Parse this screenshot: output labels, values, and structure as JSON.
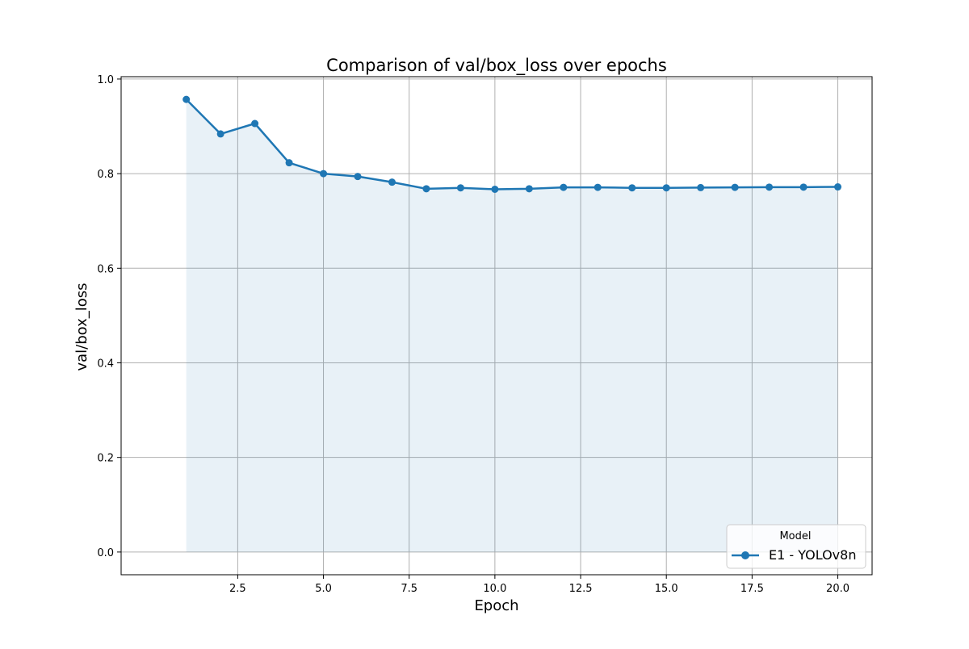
{
  "chart_data": {
    "type": "line",
    "title": "Comparison of val/box_loss over epochs",
    "xlabel": "Epoch",
    "ylabel": "val/box_loss",
    "xlim": [
      -0.9,
      21.0
    ],
    "ylim": [
      -0.048,
      1.005
    ],
    "xticks": [
      2.5,
      5.0,
      7.5,
      10.0,
      12.5,
      15.0,
      17.5,
      20.0
    ],
    "xtick_labels": [
      "2.5",
      "5.0",
      "7.5",
      "10.0",
      "12.5",
      "15.0",
      "17.5",
      "20.0"
    ],
    "yticks": [
      0.0,
      0.2,
      0.4,
      0.6,
      0.8,
      1.0
    ],
    "ytick_labels": [
      "0.0",
      "0.2",
      "0.4",
      "0.6",
      "0.8",
      "1.0"
    ],
    "grid": true,
    "legend": {
      "title": "Model",
      "placement": "lower-right"
    },
    "series": [
      {
        "name": "E1 - YOLOv8n",
        "color": "#1f77b4",
        "fill_color": "#1f77b4",
        "marker": "circle",
        "area_fill": true,
        "x": [
          1,
          2,
          3,
          4,
          5,
          6,
          7,
          8,
          9,
          10,
          11,
          12,
          13,
          14,
          15,
          16,
          17,
          18,
          19,
          20
        ],
        "values": [
          0.957,
          0.884,
          0.906,
          0.823,
          0.8,
          0.794,
          0.782,
          0.768,
          0.77,
          0.767,
          0.768,
          0.771,
          0.771,
          0.77,
          0.77,
          0.7705,
          0.771,
          0.7715,
          0.7715,
          0.772
        ]
      }
    ]
  }
}
